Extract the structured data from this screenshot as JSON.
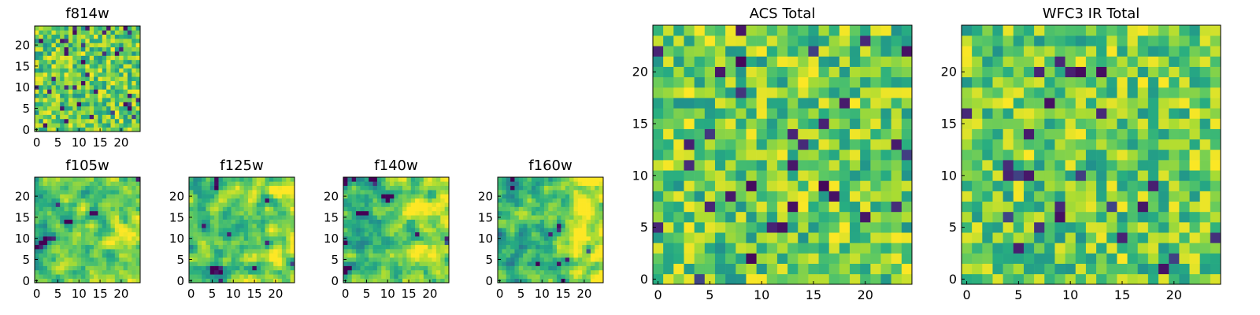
{
  "chart_data": [
    {
      "type": "heatmap",
      "title": "f814w",
      "grid_size": 25,
      "seed": 814,
      "xticks": [
        0,
        5,
        10,
        15,
        20
      ],
      "yticks": [
        0,
        5,
        10,
        15,
        20
      ],
      "xlim": [
        -0.5,
        24.5
      ],
      "ylim": [
        -0.5,
        24.5
      ],
      "smooth": 0,
      "gradient": 0,
      "colormap": "viridis",
      "value_range": [
        0,
        1
      ]
    },
    {
      "type": "heatmap",
      "title": "f105w",
      "grid_size": 25,
      "seed": 105,
      "xticks": [
        0,
        5,
        10,
        15,
        20
      ],
      "yticks": [
        0,
        5,
        10,
        15,
        20
      ],
      "xlim": [
        -0.5,
        24.5
      ],
      "ylim": [
        -0.5,
        24.5
      ],
      "smooth": 1,
      "gradient": 0.15,
      "colormap": "viridis",
      "value_range": [
        0,
        1
      ]
    },
    {
      "type": "heatmap",
      "title": "f125w",
      "grid_size": 25,
      "seed": 125,
      "xticks": [
        0,
        5,
        10,
        15,
        20
      ],
      "yticks": [
        0,
        5,
        10,
        15,
        20
      ],
      "xlim": [
        -0.5,
        24.5
      ],
      "ylim": [
        -0.5,
        24.5
      ],
      "smooth": 1,
      "gradient": 0.15,
      "colormap": "viridis",
      "value_range": [
        0,
        1
      ]
    },
    {
      "type": "heatmap",
      "title": "f140w",
      "grid_size": 25,
      "seed": 140,
      "xticks": [
        0,
        5,
        10,
        15,
        20
      ],
      "yticks": [
        0,
        5,
        10,
        15,
        20
      ],
      "xlim": [
        -0.5,
        24.5
      ],
      "ylim": [
        -0.5,
        24.5
      ],
      "smooth": 1,
      "gradient": 0.2,
      "colormap": "viridis",
      "value_range": [
        0,
        1
      ]
    },
    {
      "type": "heatmap",
      "title": "f160w",
      "grid_size": 25,
      "seed": 160,
      "xticks": [
        0,
        5,
        10,
        15,
        20
      ],
      "yticks": [
        0,
        5,
        10,
        15,
        20
      ],
      "xlim": [
        -0.5,
        24.5
      ],
      "ylim": [
        -0.5,
        24.5
      ],
      "smooth": 1,
      "gradient": 0.35,
      "colormap": "viridis",
      "value_range": [
        0,
        1
      ]
    },
    {
      "type": "heatmap",
      "title": "ACS Total",
      "grid_size": 25,
      "seed": 7,
      "xticks": [
        0,
        5,
        10,
        15,
        20
      ],
      "yticks": [
        0,
        5,
        10,
        15,
        20
      ],
      "xlim": [
        -0.5,
        24.5
      ],
      "ylim": [
        -0.5,
        24.5
      ],
      "smooth": 0,
      "gradient": 0,
      "colormap": "viridis",
      "value_range": [
        0,
        1
      ]
    },
    {
      "type": "heatmap",
      "title": "WFC3 IR Total",
      "grid_size": 25,
      "seed": 33,
      "xticks": [
        0,
        5,
        10,
        15,
        20
      ],
      "yticks": [
        0,
        5,
        10,
        15,
        20
      ],
      "xlim": [
        -0.5,
        24.5
      ],
      "ylim": [
        -0.5,
        24.5
      ],
      "smooth": 0,
      "gradient": 0,
      "colormap": "viridis",
      "value_range": [
        0,
        1
      ]
    }
  ]
}
